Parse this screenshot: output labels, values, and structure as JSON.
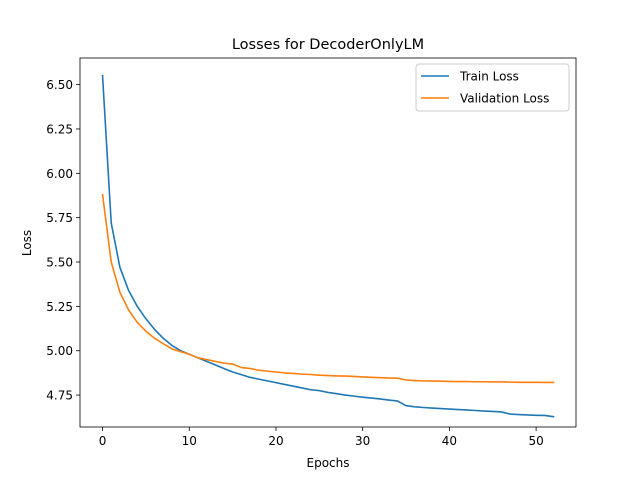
{
  "chart_data": {
    "type": "line",
    "title": "Losses for DecoderOnlyLM",
    "xlabel": "Epochs",
    "ylabel": "Loss",
    "xlim": [
      -2.6,
      54.6
    ],
    "ylim": [
      4.57,
      6.65
    ],
    "xticks": [
      0,
      10,
      20,
      30,
      40,
      50
    ],
    "xtick_labels": [
      "0",
      "10",
      "20",
      "30",
      "40",
      "50"
    ],
    "yticks": [
      4.75,
      5.0,
      5.25,
      5.5,
      5.75,
      6.0,
      6.25,
      6.5
    ],
    "ytick_labels": [
      "4.75",
      "5.00",
      "5.25",
      "5.50",
      "5.75",
      "6.00",
      "6.25",
      "6.50"
    ],
    "grid": false,
    "legend_position": "top-right",
    "x": [
      0,
      1,
      2,
      3,
      4,
      5,
      6,
      7,
      8,
      9,
      10,
      11,
      12,
      13,
      14,
      15,
      16,
      17,
      18,
      19,
      20,
      21,
      22,
      23,
      24,
      25,
      26,
      27,
      28,
      29,
      30,
      31,
      32,
      33,
      34,
      35,
      36,
      37,
      38,
      39,
      40,
      41,
      42,
      43,
      44,
      45,
      46,
      47,
      48,
      49,
      50,
      51,
      52
    ],
    "series": [
      {
        "name": "Train Loss",
        "color": "#1f77b4",
        "values": [
          6.55,
          5.72,
          5.47,
          5.34,
          5.25,
          5.18,
          5.12,
          5.07,
          5.03,
          5.0,
          4.98,
          4.96,
          4.94,
          4.92,
          4.9,
          4.88,
          4.865,
          4.85,
          4.84,
          4.83,
          4.82,
          4.81,
          4.8,
          4.79,
          4.78,
          4.775,
          4.765,
          4.758,
          4.75,
          4.744,
          4.738,
          4.733,
          4.728,
          4.722,
          4.717,
          4.69,
          4.684,
          4.68,
          4.677,
          4.674,
          4.671,
          4.668,
          4.666,
          4.663,
          4.66,
          4.658,
          4.655,
          4.643,
          4.64,
          4.638,
          4.636,
          4.635,
          4.628
        ]
      },
      {
        "name": "Validation Loss",
        "color": "#ff7f0e",
        "values": [
          5.88,
          5.5,
          5.33,
          5.23,
          5.16,
          5.11,
          5.07,
          5.04,
          5.01,
          4.995,
          4.98,
          4.96,
          4.95,
          4.94,
          4.93,
          4.925,
          4.905,
          4.9,
          4.89,
          4.885,
          4.88,
          4.875,
          4.872,
          4.868,
          4.866,
          4.862,
          4.86,
          4.858,
          4.857,
          4.855,
          4.852,
          4.85,
          4.848,
          4.846,
          4.845,
          4.835,
          4.832,
          4.83,
          4.829,
          4.828,
          4.827,
          4.826,
          4.826,
          4.825,
          4.825,
          4.824,
          4.824,
          4.823,
          4.822,
          4.822,
          4.822,
          4.821,
          4.821
        ]
      }
    ]
  }
}
